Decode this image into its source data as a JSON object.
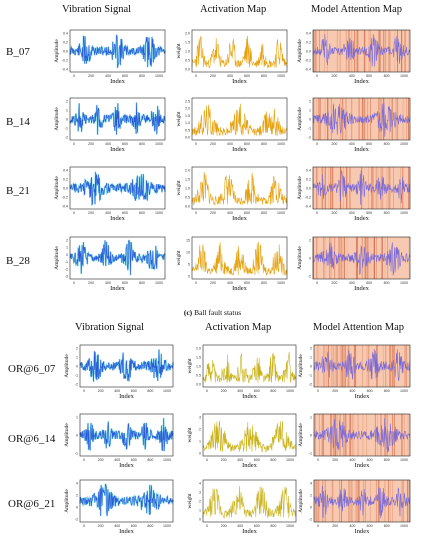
{
  "column_headers": [
    "Vibration Signal",
    "Activation Map",
    "Model Attention Map"
  ],
  "section_b": {
    "caption_letter": "(c)",
    "caption_text": "Ball fault status",
    "rows": [
      {
        "label": "B_07",
        "vib_y": [
          "0.4",
          "0.2",
          "0.0",
          "-0.2",
          "-0.4"
        ],
        "act_y": [
          "2.0",
          "1.5",
          "1.0",
          "0.5",
          "0.0"
        ],
        "att_y": [
          "0.4",
          "0.2",
          "0.0",
          "-0.2",
          "-0.4"
        ],
        "act_ylabel": "weight"
      },
      {
        "label": "B_14",
        "vib_y": [
          "2",
          "1",
          "0",
          "-1",
          "-2"
        ],
        "act_y": [
          "2.5",
          "2.0",
          "1.5",
          "1.0",
          "0.5",
          "0.0"
        ],
        "att_y": [
          "2",
          "1",
          "0",
          "-1",
          "-2"
        ],
        "act_ylabel": "weight"
      },
      {
        "label": "B_21",
        "vib_y": [
          "0.4",
          "0.2",
          "0.0",
          "-0.2",
          "-0.4"
        ],
        "act_y": [
          "2.0",
          "1.5",
          "1.0",
          "0.5",
          "0.0"
        ],
        "att_y": [
          "0.4",
          "0.2",
          "0.0",
          "-0.2",
          "-0.4"
        ],
        "act_ylabel": "weight"
      },
      {
        "label": "B_28",
        "vib_y": [
          "2",
          "1",
          "0",
          "-1",
          "-2",
          "-3"
        ],
        "act_y": [
          "15",
          "10",
          "5",
          "0"
        ],
        "att_y": [
          "2",
          "0",
          "-2"
        ],
        "act_ylabel": "weight"
      }
    ]
  },
  "section_or": {
    "headers": [
      "Vibration Signal",
      "Activation Map",
      "Model Attention Map"
    ],
    "rows": [
      {
        "label": "OR@6_07",
        "vib_y": [
          "2",
          "1",
          "0",
          "-1",
          "-2"
        ],
        "act_y": [
          "2.0",
          "1.5",
          "1.0",
          "0.5",
          "0.0"
        ],
        "att_y": [
          "2",
          "1",
          "0",
          "-1",
          "-2"
        ],
        "act_ylabel": "weight"
      },
      {
        "label": "OR@6_14",
        "vib_y": [
          "1",
          "0",
          "-1"
        ],
        "act_y": [
          "3",
          "2",
          "1",
          "0"
        ],
        "att_y": [
          "1",
          "0",
          "-1"
        ],
        "act_ylabel": "weight"
      },
      {
        "label": "OR@6_21",
        "vib_y": [
          "4",
          "2",
          "0",
          "-2"
        ],
        "act_y": [
          "4",
          "3",
          "2",
          "1",
          "0"
        ],
        "att_y": [
          "4",
          "2",
          "0",
          "-2"
        ],
        "act_ylabel": "weight"
      }
    ]
  },
  "axis_text": {
    "x_label": "Index",
    "y_label_amplitude": "Amplitude",
    "x_ticks": [
      "0",
      "200",
      "400",
      "600",
      "800",
      "1000"
    ]
  },
  "colors": {
    "vibration": "#2a5bd7",
    "vibration_edge": "#36c6e0",
    "activation": "#e6a10e",
    "activation_or": "#c9b21a",
    "attention_bg": "#f7c9b0",
    "attention_line": "#d2603a",
    "attention_signal": "#7a6ad8"
  }
}
